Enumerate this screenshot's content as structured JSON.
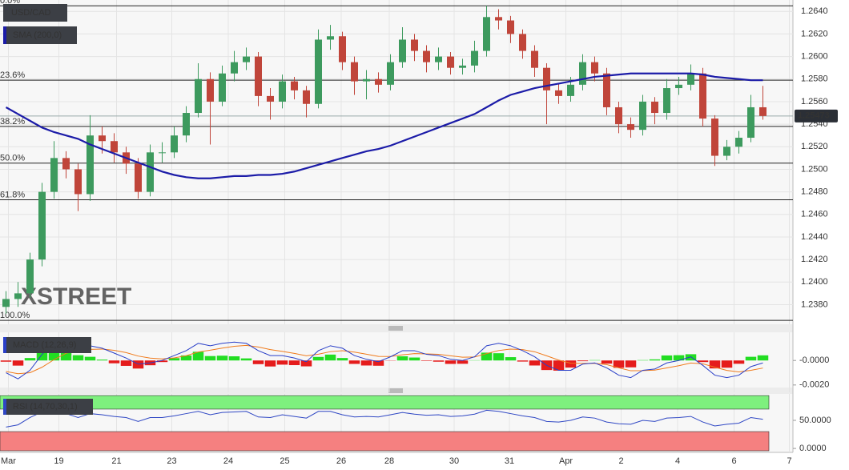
{
  "chart_data": [
    {
      "type": "candlestick",
      "name": "USD/CAD",
      "watermark": "XSTREET",
      "up_color": "#3d9a5e",
      "down_color": "#c0453a",
      "xlim": [
        -0.5,
        65.5
      ],
      "xticks": [
        {
          "value": 0.2,
          "label": "Mar"
        },
        {
          "value": 4.4,
          "label": "19"
        },
        {
          "value": 9.2,
          "label": "21"
        },
        {
          "value": 13.8,
          "label": "23"
        },
        {
          "value": 18.5,
          "label": "24"
        },
        {
          "value": 23.2,
          "label": "25"
        },
        {
          "value": 27.9,
          "label": "26"
        },
        {
          "value": 31.9,
          "label": "28"
        },
        {
          "value": 37.3,
          "label": "30"
        },
        {
          "value": 41.9,
          "label": "31"
        },
        {
          "value": 46.6,
          "label": "Apr"
        },
        {
          "value": 51.2,
          "label": "2"
        },
        {
          "value": 55.9,
          "label": "4"
        },
        {
          "value": 60.6,
          "label": "6"
        },
        {
          "value": 65.2,
          "label": "7"
        }
      ],
      "ylim": [
        1.2364,
        1.2648
      ],
      "yticks": [
        {
          "value": 1.238,
          "label": "1.2380"
        },
        {
          "value": 1.24,
          "label": "1.2400"
        },
        {
          "value": 1.242,
          "label": "1.2420"
        },
        {
          "value": 1.244,
          "label": "1.2440"
        },
        {
          "value": 1.246,
          "label": "1.2460"
        },
        {
          "value": 1.248,
          "label": "1.2480"
        },
        {
          "value": 1.25,
          "label": "1.2500"
        },
        {
          "value": 1.252,
          "label": "1.2520"
        },
        {
          "value": 1.254,
          "label": "1.2540"
        },
        {
          "value": 1.256,
          "label": "1.2560"
        },
        {
          "value": 1.258,
          "label": "1.2580"
        },
        {
          "value": 1.26,
          "label": "1.2600"
        },
        {
          "value": 1.262,
          "label": "1.2620"
        },
        {
          "value": 1.264,
          "label": "1.2640"
        }
      ],
      "grid": true,
      "last_price": 1.25473,
      "fib_levels": [
        {
          "value": 1.2645,
          "label": "0.0%"
        },
        {
          "value": 1.2579,
          "label": "23.6%"
        },
        {
          "value": 1.2538,
          "label": "38.2%"
        },
        {
          "value": 1.25055,
          "label": "50.0%"
        },
        {
          "value": 1.2473,
          "label": "61.8%"
        },
        {
          "value": 1.2366,
          "label": "100.0%"
        }
      ],
      "open": [
        1.2378,
        1.2385,
        1.239,
        1.242,
        1.248,
        1.251,
        1.25,
        1.2478,
        1.253,
        1.2525,
        1.2515,
        1.2505,
        1.248,
        1.2515,
        1.2515,
        1.253,
        1.255,
        1.258,
        1.256,
        1.2585,
        1.2595,
        1.26,
        1.2565,
        1.256,
        1.2578,
        1.257,
        1.2558,
        1.2615,
        1.2618,
        1.2595,
        1.2578,
        1.258,
        1.2575,
        1.2595,
        1.2615,
        1.2605,
        1.2595,
        1.26,
        1.259,
        1.2592,
        1.2605,
        1.2635,
        1.2632,
        1.262,
        1.2605,
        1.259,
        1.257,
        1.2565,
        1.2575,
        1.2595,
        1.2585,
        1.2555,
        1.254,
        1.2535,
        1.256,
        1.255,
        1.2572,
        1.2575,
        1.2585,
        1.2545,
        1.2512,
        1.252,
        1.2528,
        1.2555
      ],
      "high": [
        1.2392,
        1.24,
        1.2426,
        1.2488,
        1.2525,
        1.2516,
        1.2505,
        1.2548,
        1.2538,
        1.2532,
        1.252,
        1.251,
        1.2522,
        1.2524,
        1.2538,
        1.2556,
        1.2594,
        1.2586,
        1.2592,
        1.2605,
        1.2608,
        1.2604,
        1.2572,
        1.2584,
        1.2582,
        1.2574,
        1.2624,
        1.2628,
        1.2622,
        1.26,
        1.2588,
        1.2586,
        1.2602,
        1.2626,
        1.262,
        1.261,
        1.2608,
        1.2604,
        1.2598,
        1.2614,
        1.2645,
        1.2642,
        1.2636,
        1.2624,
        1.261,
        1.2594,
        1.2576,
        1.2582,
        1.2602,
        1.26,
        1.259,
        1.256,
        1.2546,
        1.2566,
        1.2564,
        1.258,
        1.2582,
        1.2593,
        1.259,
        1.2548,
        1.2526,
        1.2534,
        1.2566,
        1.2574
      ],
      "low": [
        1.2372,
        1.2378,
        1.2386,
        1.2414,
        1.2474,
        1.2492,
        1.2463,
        1.2472,
        1.2514,
        1.2506,
        1.2496,
        1.2474,
        1.2476,
        1.2506,
        1.251,
        1.2524,
        1.2546,
        1.2522,
        1.2556,
        1.2578,
        1.2588,
        1.2556,
        1.2544,
        1.2554,
        1.2562,
        1.2546,
        1.2554,
        1.2606,
        1.2588,
        1.2566,
        1.2562,
        1.2568,
        1.257,
        1.259,
        1.2596,
        1.2586,
        1.2588,
        1.2584,
        1.2584,
        1.2586,
        1.26,
        1.2624,
        1.2612,
        1.2598,
        1.2582,
        1.254,
        1.2558,
        1.256,
        1.257,
        1.2578,
        1.2548,
        1.2532,
        1.2528,
        1.253,
        1.254,
        1.2544,
        1.2566,
        1.257,
        1.2538,
        1.2503,
        1.2508,
        1.2514,
        1.2524,
        1.2544
      ],
      "close": [
        1.2385,
        1.239,
        1.242,
        1.248,
        1.251,
        1.25,
        1.2478,
        1.253,
        1.2525,
        1.2515,
        1.2505,
        1.248,
        1.2515,
        1.2515,
        1.253,
        1.255,
        1.258,
        1.256,
        1.2585,
        1.2595,
        1.26,
        1.2565,
        1.256,
        1.2578,
        1.257,
        1.2558,
        1.2615,
        1.2618,
        1.2595,
        1.2578,
        1.258,
        1.2575,
        1.2595,
        1.2615,
        1.2605,
        1.2595,
        1.26,
        1.259,
        1.2592,
        1.2605,
        1.2635,
        1.2632,
        1.262,
        1.2605,
        1.259,
        1.257,
        1.2565,
        1.2575,
        1.2595,
        1.2585,
        1.2555,
        1.254,
        1.2535,
        1.256,
        1.255,
        1.2572,
        1.2575,
        1.2585,
        1.2545,
        1.2512,
        1.252,
        1.2528,
        1.2555,
        1.25473
      ],
      "sma": {
        "name": "SMA (200,0)",
        "color": "#1c1ca8",
        "values": [
          1.2555,
          1.2549,
          1.2543,
          1.2537,
          1.2533,
          1.253,
          1.2527,
          1.2522,
          1.2518,
          1.2514,
          1.251,
          1.2506,
          1.2502,
          1.2498,
          1.2495,
          1.2493,
          1.2492,
          1.2492,
          1.2493,
          1.2494,
          1.2494,
          1.2495,
          1.2495,
          1.2496,
          1.2498,
          1.2501,
          1.2504,
          1.2507,
          1.251,
          1.2513,
          1.2516,
          1.2518,
          1.2521,
          1.2525,
          1.2529,
          1.2533,
          1.2537,
          1.2541,
          1.2545,
          1.2549,
          1.2555,
          1.2561,
          1.2566,
          1.2569,
          1.2572,
          1.2574,
          1.2576,
          1.2578,
          1.258,
          1.2582,
          1.2583,
          1.2584,
          1.2585,
          1.2585,
          1.2585,
          1.2585,
          1.2585,
          1.2585,
          1.2584,
          1.2582,
          1.2581,
          1.258,
          1.2579,
          1.2579
        ]
      }
    },
    {
      "type": "macd",
      "name": "MACD (12,26,9)",
      "ylim": [
        -0.0026,
        0.0023
      ],
      "yticks": [
        {
          "value": 0,
          "label": "-0.0000"
        },
        {
          "value": -0.002,
          "label": "-0.0020"
        }
      ],
      "macd": {
        "color": "#2a3fc8",
        "values": [
          -0.001,
          -0.0015,
          -0.0008,
          0.0005,
          0.0015,
          0.0018,
          0.0012,
          0.0012,
          0.001,
          0.0006,
          0.0002,
          -0.0003,
          -0.0002,
          0,
          0.0004,
          0.0008,
          0.0014,
          0.0012,
          0.0014,
          0.0015,
          0.0014,
          0.0008,
          0.0004,
          0.0004,
          0.0002,
          -0.0001,
          0.0008,
          0.0012,
          0.001,
          0.0004,
          0.0001,
          -0.0001,
          0.0003,
          0.0008,
          0.0008,
          0.0005,
          0.0004,
          0.0001,
          0,
          0.0003,
          0.0012,
          0.0014,
          0.0012,
          0.0008,
          0.0003,
          -0.0004,
          -0.0008,
          -0.0008,
          -0.0003,
          -0.0002,
          -0.0006,
          -0.0012,
          -0.0014,
          -0.0008,
          -0.0007,
          -0.0002,
          0,
          0.0003,
          -0.0004,
          -0.0012,
          -0.0014,
          -0.0012,
          -0.0005,
          -0.0002
        ]
      },
      "signal": {
        "color": "#f07b1c",
        "values": [
          -0.0009,
          -0.00108,
          -0.001,
          -0.00055,
          7e-05,
          0.00059,
          0.00077,
          0.0009,
          0.00093,
          0.00083,
          0.00064,
          0.00036,
          0.00019,
          0.00013,
          0.00021,
          0.00039,
          0.00069,
          0.00084,
          0.00101,
          0.00116,
          0.00123,
          0.0011,
          0.00089,
          0.00074,
          0.00058,
          0.00038,
          0.00051,
          0.00072,
          0.0008,
          0.00068,
          0.00051,
          0.00033,
          0.00032,
          0.00046,
          0.00056,
          0.00054,
          0.0005,
          0.00038,
          0.00027,
          0.00028,
          0.00056,
          0.00081,
          0.00093,
          0.00089,
          0.00071,
          0.00038,
          3e-05,
          -0.00022,
          -0.00024,
          -0.00023,
          -0.00034,
          -0.0006,
          -0.00084,
          -0.00083,
          -0.00079,
          -0.00061,
          -0.00043,
          -0.00021,
          -0.00027,
          -0.00055,
          -0.00081,
          -0.00093,
          -0.0008,
          -0.00062
        ]
      },
      "histogram": {
        "up_color": "#22dd22",
        "down_color": "#e51c1c",
        "values": [
          -0.0001,
          -0.00042,
          0.0002,
          0.00105,
          0.00143,
          0.00121,
          0.00043,
          0.0003,
          7e-05,
          -0.00023,
          -0.00044,
          -0.00066,
          -0.00039,
          -0.00013,
          0.00019,
          0.00041,
          0.00071,
          0.00036,
          0.00039,
          0.00034,
          0.00017,
          -0.0003,
          -0.00049,
          -0.00034,
          -0.00038,
          -0.00048,
          0.00029,
          0.00048,
          0.0002,
          -0.00028,
          -0.00041,
          -0.00043,
          -2e-05,
          0.00034,
          0.00024,
          -4e-05,
          -0.0001,
          -0.00028,
          -0.00027,
          2e-05,
          0.00064,
          0.00059,
          0.00027,
          -9e-05,
          -0.00041,
          -0.00078,
          -0.00083,
          -0.00058,
          -6e-05,
          3e-05,
          -0.00026,
          -0.0006,
          -0.00056,
          3e-05,
          9e-05,
          0.00041,
          0.00043,
          0.00051,
          -0.00013,
          -0.00065,
          -0.00059,
          -0.00027,
          0.0003,
          0.00042
        ]
      }
    },
    {
      "type": "rsi",
      "name": "RSI (14,70,30,1)",
      "ylim": [
        -7,
        97
      ],
      "yticks": [
        {
          "value": 0,
          "label": "0.0000"
        },
        {
          "value": 50,
          "label": "50.0000"
        }
      ],
      "overbought": 70,
      "oversold": 30,
      "overbought_color": "#7ef07e",
      "oversold_color": "#f58080",
      "color": "#2f47c4",
      "values": [
        38,
        42,
        55,
        65,
        68,
        62,
        55,
        62,
        60,
        57,
        55,
        48,
        55,
        55,
        58,
        62,
        66,
        60,
        64,
        65,
        66,
        56,
        55,
        60,
        57,
        54,
        66,
        66,
        60,
        56,
        57,
        56,
        60,
        64,
        61,
        59,
        60,
        57,
        58,
        61,
        68,
        66,
        62,
        58,
        55,
        48,
        47,
        50,
        56,
        54,
        47,
        44,
        43,
        50,
        48,
        54,
        55,
        57,
        47,
        40,
        43,
        45,
        55,
        52
      ]
    }
  ]
}
